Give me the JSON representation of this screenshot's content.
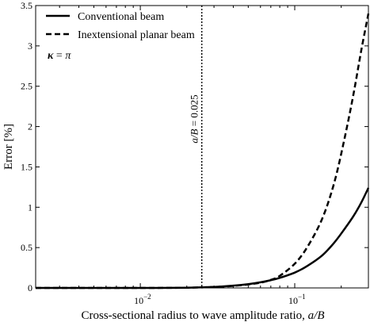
{
  "chart_data": {
    "type": "line",
    "title": "",
    "xlabel": "Cross-sectional radius to wave amplitude ratio, a/B",
    "ylabel": "Error [%]",
    "xscale": "log",
    "xlim": [
      0.0021,
      0.3
    ],
    "ylim": [
      0,
      3.5
    ],
    "yticks": [
      {
        "value": 0,
        "label": "0"
      },
      {
        "value": 0.5,
        "label": "0.5"
      },
      {
        "value": 1,
        "label": "1"
      },
      {
        "value": 1.5,
        "label": "1.5"
      },
      {
        "value": 2,
        "label": "2"
      },
      {
        "value": 2.5,
        "label": "2.5"
      },
      {
        "value": 3,
        "label": "3"
      },
      {
        "value": 3.5,
        "label": "3.5"
      }
    ],
    "xticks": [
      {
        "value": 0.01,
        "base": "10",
        "exp": "−2"
      },
      {
        "value": 0.1,
        "base": "10",
        "exp": "−1"
      }
    ],
    "grid": false,
    "legend_position": "top-left",
    "annotation": {
      "text": "κ = π",
      "symbol": "κ",
      "equals": " = ",
      "rhs": "π"
    },
    "reference_line": {
      "x": 0.025,
      "style": "dotted",
      "label_italic": "a/B",
      "label_rest": " = 0.025"
    },
    "series": [
      {
        "name": "Conventional beam",
        "style": "solid",
        "color": "#000000",
        "x": [
          0.0021,
          0.005,
          0.01,
          0.02,
          0.03,
          0.04,
          0.05,
          0.06,
          0.07,
          0.08,
          0.1,
          0.12,
          0.15,
          0.18,
          0.21,
          0.24,
          0.27,
          0.3
        ],
        "y": [
          0.0,
          0.0,
          0.0,
          0.003,
          0.012,
          0.028,
          0.047,
          0.07,
          0.096,
          0.125,
          0.19,
          0.27,
          0.4,
          0.56,
          0.73,
          0.89,
          1.06,
          1.24
        ]
      },
      {
        "name": "Inextensional planar beam",
        "style": "dashed",
        "color": "#000000",
        "x": [
          0.0021,
          0.005,
          0.01,
          0.02,
          0.03,
          0.04,
          0.05,
          0.06,
          0.07,
          0.08,
          0.1,
          0.12,
          0.15,
          0.18,
          0.21,
          0.24,
          0.27,
          0.3
        ],
        "y": [
          0.0,
          0.0,
          0.0,
          0.003,
          0.012,
          0.025,
          0.043,
          0.065,
          0.1,
          0.15,
          0.3,
          0.5,
          0.85,
          1.3,
          1.85,
          2.4,
          2.95,
          3.4
        ]
      }
    ]
  }
}
